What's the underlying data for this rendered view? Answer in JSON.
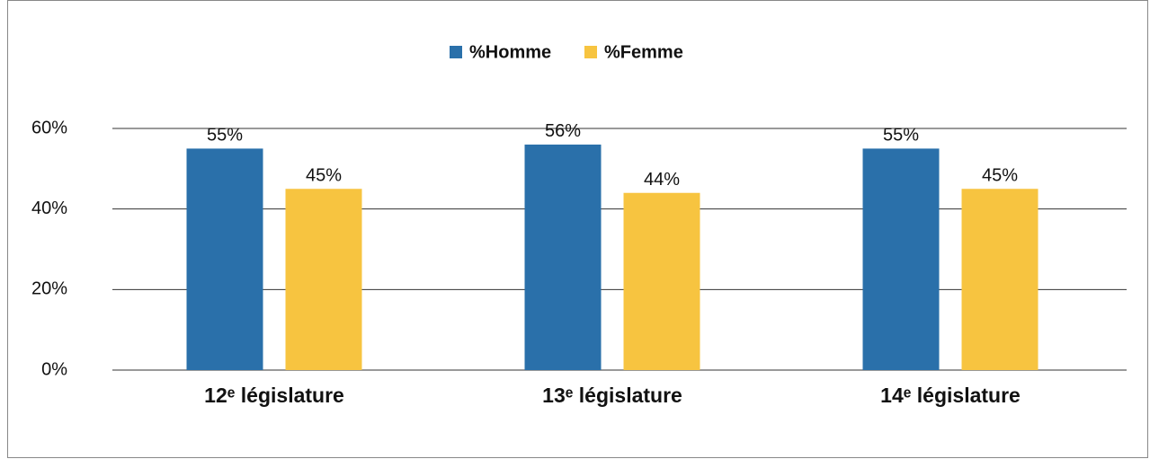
{
  "chart_data": {
    "type": "bar",
    "categories": [
      "12ᵉ législature",
      "13ᵉ législature",
      "14ᵉ législature"
    ],
    "series": [
      {
        "name": "%Homme",
        "color": "#2a70aa",
        "values": [
          55,
          56,
          55
        ],
        "value_labels": [
          "55%",
          "56%",
          "55%"
        ]
      },
      {
        "name": "%Femme",
        "color": "#f7c440",
        "values": [
          45,
          44,
          45
        ],
        "value_labels": [
          "45%",
          "44%",
          "45%"
        ]
      }
    ],
    "ylim": [
      0,
      60
    ],
    "yticks": [
      {
        "value": 0,
        "label": "0%"
      },
      {
        "value": 20,
        "label": "20%"
      },
      {
        "value": 40,
        "label": "40%"
      },
      {
        "value": 60,
        "label": "60%"
      }
    ],
    "grid": true,
    "legend": "top"
  }
}
